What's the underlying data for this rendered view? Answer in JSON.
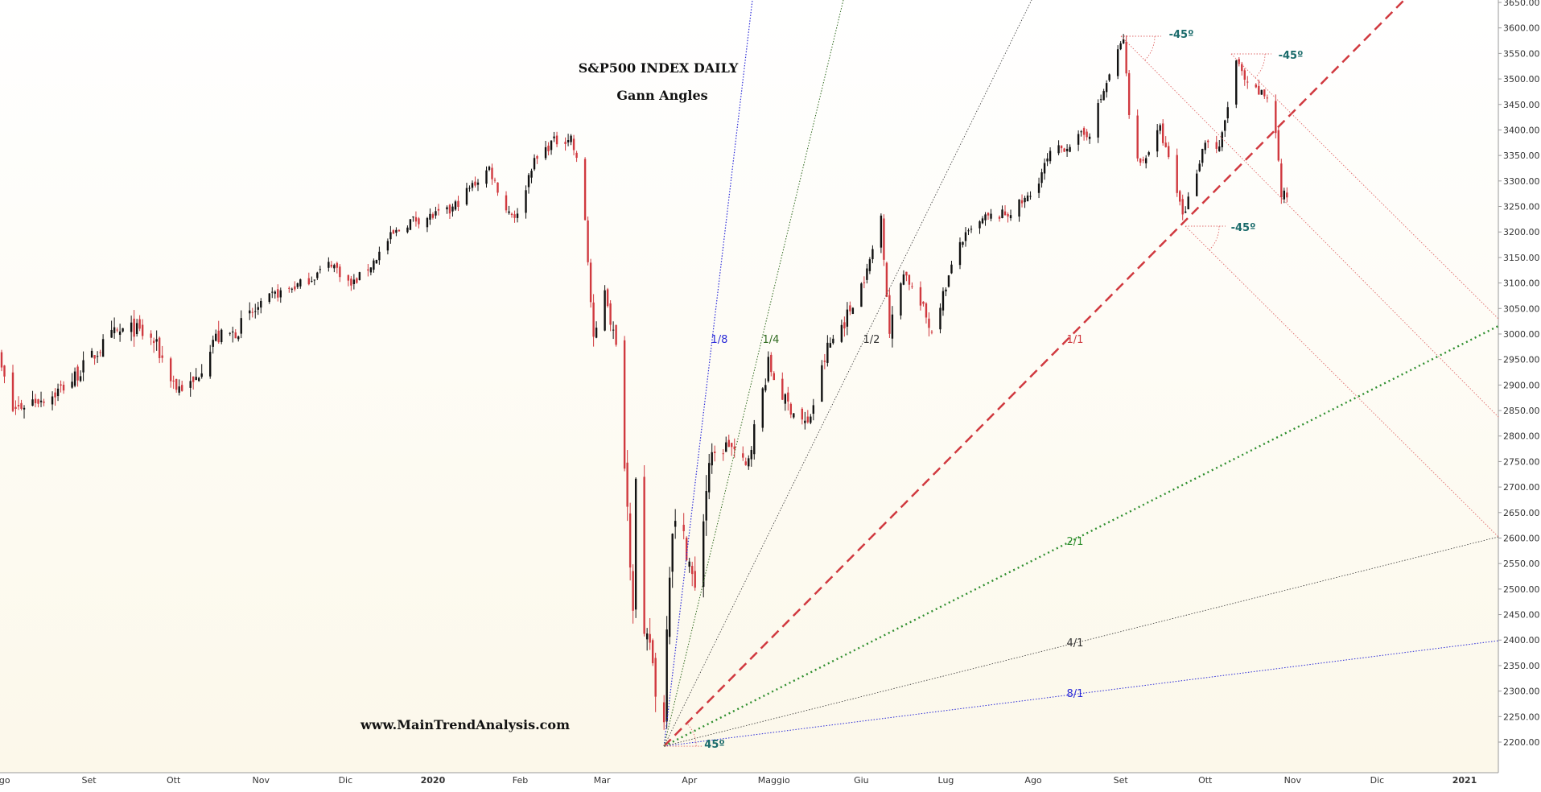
{
  "chart_data": {
    "type": "candlestick",
    "title": "S&P500 INDEX DAILY",
    "subtitle": "Gann Angles",
    "watermark": "www.MainTrendAnalysis.com",
    "colors": {
      "up": "#111111",
      "down": "#d0393f"
    },
    "x_ticks": [
      "Ago",
      "Set",
      "Ott",
      "Nov",
      "Dic",
      "2020",
      "Feb",
      "Mar",
      "Apr",
      "Maggio",
      "Giu",
      "Lug",
      "Ago",
      "Set",
      "Ott",
      "Nov",
      "Dic",
      "2021"
    ],
    "y_ticks": [
      "3650.00",
      "3600.00",
      "3550.00",
      "3500.00",
      "3450.00",
      "3400.00",
      "3350.00",
      "3300.00",
      "3250.00",
      "3200.00",
      "3150.00",
      "3100.00",
      "3050.00",
      "3000.00",
      "2950.00",
      "2900.00",
      "2850.00",
      "2800.00",
      "2750.00",
      "2700.00",
      "2650.00",
      "2600.00",
      "2550.00",
      "2500.00",
      "2450.00",
      "2400.00",
      "2350.00",
      "2300.00",
      "2250.00",
      "2200.00"
    ],
    "ylim": [
      2185,
      3660
    ],
    "price_path": [
      [
        "2019-07-29",
        2990
      ],
      [
        "2019-08-05",
        2850
      ],
      [
        "2019-08-12",
        2870
      ],
      [
        "2019-08-19",
        2880
      ],
      [
        "2019-08-26",
        2910
      ],
      [
        "2019-09-03",
        2960
      ],
      [
        "2019-09-10",
        3000
      ],
      [
        "2019-09-17",
        3010
      ],
      [
        "2019-09-24",
        2985
      ],
      [
        "2019-10-02",
        2895
      ],
      [
        "2019-10-08",
        2900
      ],
      [
        "2019-10-15",
        2990
      ],
      [
        "2019-10-22",
        3000
      ],
      [
        "2019-10-29",
        3040
      ],
      [
        "2019-11-05",
        3075
      ],
      [
        "2019-11-12",
        3090
      ],
      [
        "2019-11-19",
        3110
      ],
      [
        "2019-11-26",
        3140
      ],
      [
        "2019-12-03",
        3095
      ],
      [
        "2019-12-10",
        3135
      ],
      [
        "2019-12-17",
        3190
      ],
      [
        "2019-12-24",
        3222
      ],
      [
        "2019-12-31",
        3230
      ],
      [
        "2020-01-07",
        3240
      ],
      [
        "2020-01-14",
        3285
      ],
      [
        "2020-01-21",
        3325
      ],
      [
        "2020-01-27",
        3245
      ],
      [
        "2020-01-31",
        3230
      ],
      [
        "2020-02-05",
        3330
      ],
      [
        "2020-02-12",
        3375
      ],
      [
        "2020-02-19",
        3386
      ],
      [
        "2020-02-21",
        3338
      ],
      [
        "2020-02-24",
        3225
      ],
      [
        "2020-02-27",
        2980
      ],
      [
        "2020-03-02",
        3090
      ],
      [
        "2020-03-06",
        2970
      ],
      [
        "2020-03-09",
        2750
      ],
      [
        "2020-03-12",
        2480
      ],
      [
        "2020-03-13",
        2711
      ],
      [
        "2020-03-16",
        2386
      ],
      [
        "2020-03-18",
        2399
      ],
      [
        "2020-03-20",
        2305
      ],
      [
        "2020-03-23",
        2237
      ],
      [
        "2020-03-24",
        2447
      ],
      [
        "2020-03-26",
        2630
      ],
      [
        "2020-03-31",
        2585
      ],
      [
        "2020-04-03",
        2489
      ],
      [
        "2020-04-08",
        2750
      ],
      [
        "2020-04-15",
        2785
      ],
      [
        "2020-04-21",
        2737
      ],
      [
        "2020-04-29",
        2940
      ],
      [
        "2020-05-05",
        2868
      ],
      [
        "2020-05-13",
        2820
      ],
      [
        "2020-05-20",
        2972
      ],
      [
        "2020-05-27",
        3036
      ],
      [
        "2020-06-03",
        3122
      ],
      [
        "2020-06-08",
        3232
      ],
      [
        "2020-06-11",
        3002
      ],
      [
        "2020-06-16",
        3125
      ],
      [
        "2020-06-26",
        3009
      ],
      [
        "2020-07-06",
        3180
      ],
      [
        "2020-07-15",
        3227
      ],
      [
        "2020-07-23",
        3236
      ],
      [
        "2020-07-31",
        3271
      ],
      [
        "2020-08-07",
        3351
      ],
      [
        "2020-08-14",
        3373
      ],
      [
        "2020-08-21",
        3397
      ],
      [
        "2020-08-28",
        3508
      ],
      [
        "2020-09-02",
        3580
      ],
      [
        "2020-09-04",
        3427
      ],
      [
        "2020-09-08",
        3331
      ],
      [
        "2020-09-15",
        3401
      ],
      [
        "2020-09-23",
        3237
      ],
      [
        "2020-09-24",
        3246
      ],
      [
        "2020-10-01",
        3380
      ],
      [
        "2020-10-06",
        3360
      ],
      [
        "2020-10-12",
        3534
      ],
      [
        "2020-10-16",
        3483
      ],
      [
        "2020-10-23",
        3465
      ],
      [
        "2020-10-26",
        3400
      ],
      [
        "2020-10-28",
        3271
      ],
      [
        "2020-10-30",
        3270
      ]
    ],
    "gann_lines": [
      {
        "label": "1/8",
        "color": "#2b2bd8"
      },
      {
        "label": "1/4",
        "color": "#2f6a1f"
      },
      {
        "label": "1/2",
        "color": "#333333"
      },
      {
        "label": "1/1",
        "color": "#d0393f"
      },
      {
        "label": "2/1",
        "color": "#2f8f2f"
      },
      {
        "label": "4/1",
        "color": "#333333"
      },
      {
        "label": "8/1",
        "color": "#2b2bd8"
      }
    ],
    "angle_labels": [
      "45º",
      "-45º",
      "-45º",
      "-45º"
    ],
    "angle_color": "#1a6b6b"
  }
}
